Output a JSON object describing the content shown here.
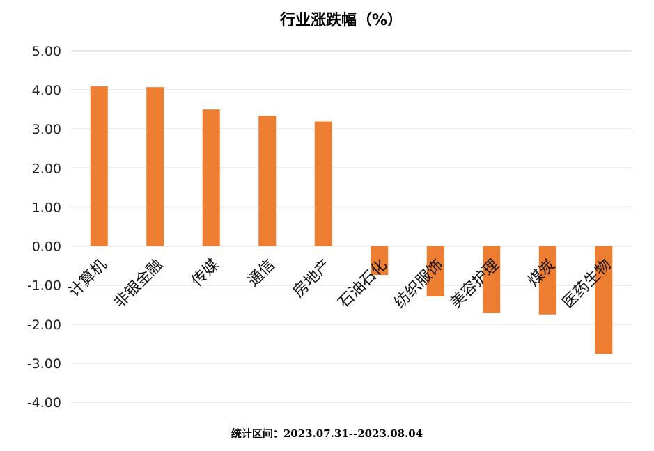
{
  "chart_data": {
    "type": "bar",
    "title": "行业涨跌幅（%）",
    "categories": [
      "计算机",
      "非银金融",
      "传媒",
      "通信",
      "房地产",
      "石油石化",
      "纺织服饰",
      "美容护理",
      "煤炭",
      "医药生物"
    ],
    "values": [
      4.09,
      4.07,
      3.5,
      3.34,
      3.19,
      -0.74,
      -1.29,
      -1.72,
      -1.75,
      -2.76
    ],
    "ylim": [
      -4,
      5
    ],
    "yticks": [
      "5.00",
      "4.00",
      "3.00",
      "2.00",
      "1.00",
      "0.00",
      "-1.00",
      "-2.00",
      "-3.00",
      "-4.00"
    ],
    "grid": true,
    "bar_color": "#ED7D31",
    "grid_color": "#D9D9D9"
  },
  "footer": "统计区间：2023.07.31--2023.08.04"
}
